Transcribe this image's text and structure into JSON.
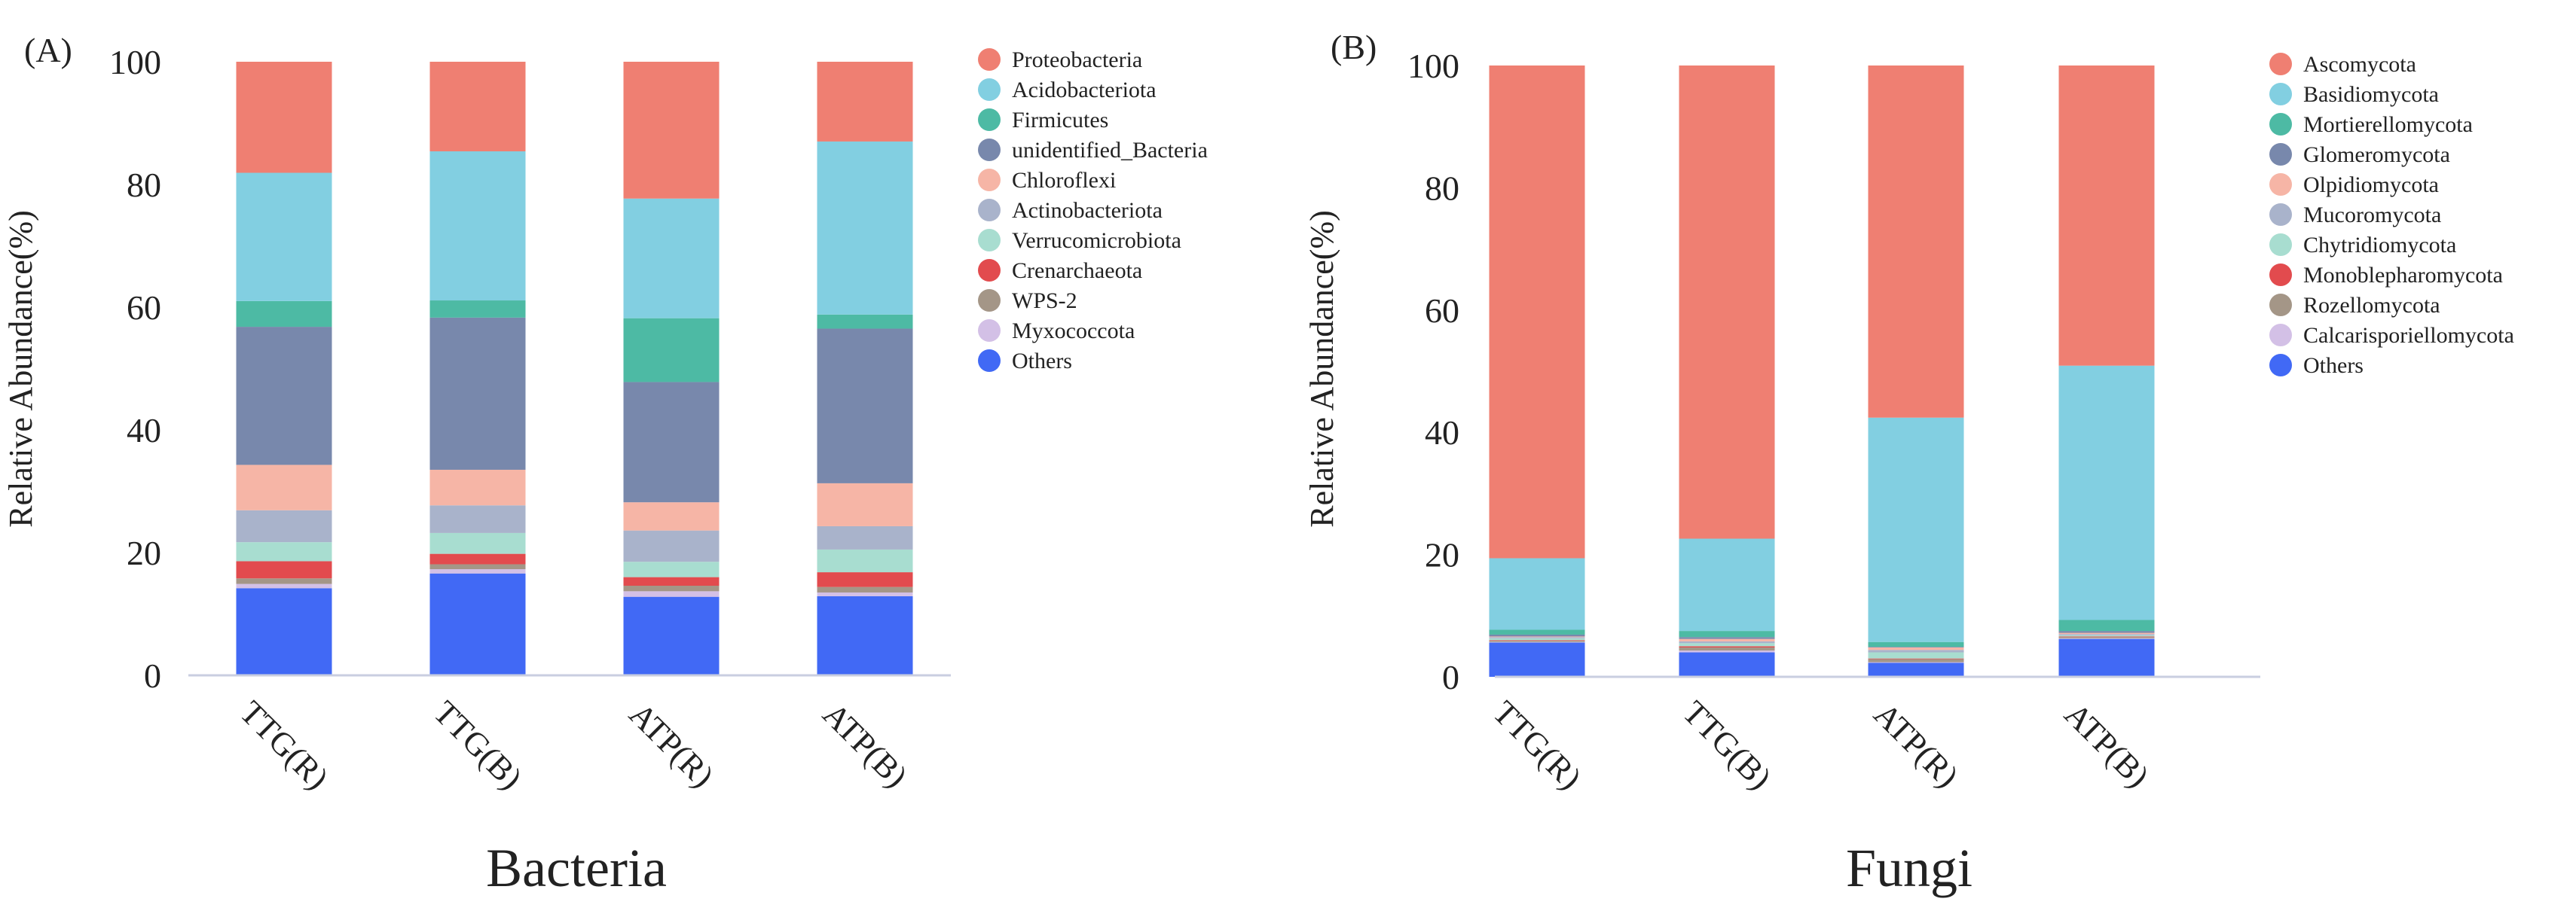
{
  "colors": {
    "c0": "#EF7F72",
    "c1": "#82CFE1",
    "c2": "#4DBAA4",
    "c3": "#7888AC",
    "c4": "#F6B5A6",
    "c5": "#A9B3CB",
    "c6": "#A8DDD0",
    "c7": "#E24B4E",
    "c8": "#A49687",
    "c9": "#D3C0E6",
    "c10": "#4169F5",
    "axis": "#C9CEE0",
    "text": "#222222"
  },
  "chart_data": [
    {
      "type": "bar",
      "stacked": true,
      "panel_label": "(A)",
      "title": "Bacteria",
      "xlabel": "Bacteria",
      "ylabel": "Relative Abundance(%)",
      "ylim": [
        0,
        100
      ],
      "yticks": [
        0,
        20,
        40,
        60,
        80,
        100
      ],
      "categories": [
        "TTG(R)",
        "TTG(B)",
        "ATP(R)",
        "ATP(B)"
      ],
      "legend_position": "right",
      "series": [
        {
          "name": "Others",
          "color_key": "c10",
          "values": [
            14.2,
            16.6,
            12.8,
            12.9
          ]
        },
        {
          "name": "Myxococcota",
          "color_key": "c9",
          "values": [
            0.7,
            0.7,
            0.9,
            0.6
          ]
        },
        {
          "name": "WPS-2",
          "color_key": "c8",
          "values": [
            0.9,
            0.8,
            0.9,
            0.9
          ]
        },
        {
          "name": "Crenarchaeota",
          "color_key": "c7",
          "values": [
            2.8,
            1.7,
            1.4,
            2.4
          ]
        },
        {
          "name": "Verrucomicrobiota",
          "color_key": "c6",
          "values": [
            3.1,
            3.4,
            2.5,
            3.7
          ]
        },
        {
          "name": "Actinobacteriota",
          "color_key": "c5",
          "values": [
            5.2,
            4.5,
            5.1,
            3.8
          ]
        },
        {
          "name": "Chloroflexi",
          "color_key": "c4",
          "values": [
            7.4,
            5.8,
            4.6,
            7.0
          ]
        },
        {
          "name": "unidentified_Bacteria",
          "color_key": "c3",
          "values": [
            22.5,
            24.8,
            19.6,
            25.2
          ]
        },
        {
          "name": "Firmicutes",
          "color_key": "c2",
          "values": [
            4.2,
            2.8,
            10.4,
            2.3
          ]
        },
        {
          "name": "Acidobacteriota",
          "color_key": "c1",
          "values": [
            20.9,
            24.3,
            19.5,
            28.2
          ]
        },
        {
          "name": "Proteobacteria",
          "color_key": "c0",
          "values": [
            18.1,
            14.6,
            22.3,
            13.0
          ]
        }
      ],
      "legend": [
        "Proteobacteria",
        "Acidobacteriota",
        "Firmicutes",
        "unidentified_Bacteria",
        "Chloroflexi",
        "Actinobacteriota",
        "Verrucomicrobiota",
        "Crenarchaeota",
        "WPS-2",
        "Myxococcota",
        "Others"
      ]
    },
    {
      "type": "bar",
      "stacked": true,
      "panel_label": "(B)",
      "title": "Fungi",
      "xlabel": "Fungi",
      "ylabel": "Relative Abundance(%)",
      "ylim": [
        0,
        100
      ],
      "yticks": [
        0,
        20,
        40,
        60,
        80,
        100
      ],
      "categories": [
        "TTG(R)",
        "TTG(B)",
        "ATP(R)",
        "ATP(B)"
      ],
      "legend_position": "right",
      "series": [
        {
          "name": "Others",
          "color_key": "c10",
          "values": [
            5.6,
            4.0,
            2.3,
            6.2
          ]
        },
        {
          "name": "Calcarisporiellomycota",
          "color_key": "c9",
          "values": [
            0.1,
            0.3,
            0.1,
            0.1
          ]
        },
        {
          "name": "Rozellomycota",
          "color_key": "c8",
          "values": [
            0.2,
            0.5,
            0.5,
            0.2
          ]
        },
        {
          "name": "Monoblepharomycota",
          "color_key": "c7",
          "values": [
            0.1,
            0.2,
            0.1,
            0.1
          ]
        },
        {
          "name": "Chytridiomycota",
          "color_key": "c6",
          "values": [
            0.3,
            0.5,
            1.0,
            0.2
          ]
        },
        {
          "name": "Mucoromycota",
          "color_key": "c5",
          "values": [
            0.2,
            0.3,
            0.4,
            0.2
          ]
        },
        {
          "name": "Olpidiomycota",
          "color_key": "c4",
          "values": [
            0.1,
            0.4,
            0.4,
            0.2
          ]
        },
        {
          "name": "Glomeromycota",
          "color_key": "c3",
          "values": [
            0.3,
            0.3,
            0.1,
            0.3
          ]
        },
        {
          "name": "Mortierellomycota",
          "color_key": "c2",
          "values": [
            0.8,
            1.0,
            0.8,
            1.8
          ]
        },
        {
          "name": "Basidiomycota",
          "color_key": "c1",
          "values": [
            11.7,
            15.1,
            36.7,
            41.6
          ]
        },
        {
          "name": "Ascomycota",
          "color_key": "c0",
          "values": [
            80.6,
            77.4,
            57.6,
            49.1
          ]
        }
      ],
      "legend": [
        "Ascomycota",
        "Basidiomycota",
        "Mortierellomycota",
        "Glomeromycota",
        "Olpidiomycota",
        "Mucoromycota",
        "Chytridiomycota",
        "Monoblepharomycota",
        "Rozellomycota",
        "Calcarisporiellomycota",
        "Others"
      ]
    }
  ]
}
